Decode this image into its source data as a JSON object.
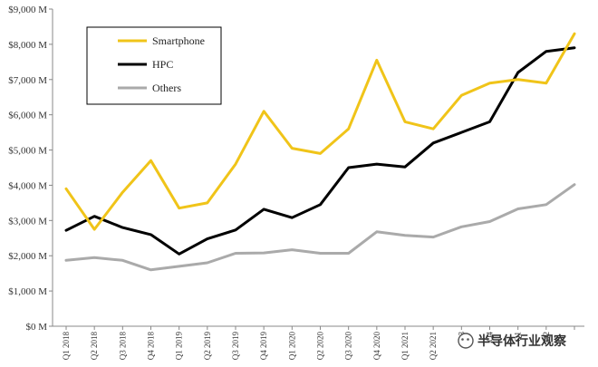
{
  "chart_data": {
    "type": "line",
    "title": "",
    "xlabel": "",
    "ylabel": "",
    "categories": [
      "Q1 2018",
      "Q2 2018",
      "Q3 2018",
      "Q4 2018",
      "Q1 2019",
      "Q2 2019",
      "Q3 2019",
      "Q4 2019",
      "Q1 2020",
      "Q2 2020",
      "Q3 2020",
      "Q4 2020",
      "Q1 2021",
      "Q2 2021",
      "Q3",
      "Q4",
      "Q1",
      "Q2",
      ""
    ],
    "ylim": [
      0,
      9000
    ],
    "yticks": [
      0,
      1000,
      2000,
      3000,
      4000,
      5000,
      6000,
      7000,
      8000,
      9000
    ],
    "ytick_labels": [
      "$0 M",
      "$1,000 M",
      "$2,000 M",
      "$3,000 M",
      "$4,000 M",
      "$5,000 M",
      "$6,000 M",
      "$7,000 M",
      "$8,000 M",
      "$9,000 M"
    ],
    "grid": false,
    "legend_position": "top-left",
    "series": [
      {
        "name": "Smartphone",
        "color": "#F0C419",
        "values": [
          3900,
          2750,
          3800,
          4700,
          3350,
          3500,
          4600,
          6100,
          5050,
          4900,
          5600,
          7550,
          5800,
          5600,
          6550,
          6900,
          7000,
          6900,
          8300
        ]
      },
      {
        "name": "HPC",
        "color": "#000000",
        "values": [
          2720,
          3120,
          2800,
          2600,
          2050,
          2480,
          2730,
          3320,
          3080,
          3450,
          4500,
          4600,
          4520,
          5200,
          5500,
          5800,
          7200,
          7800,
          7900
        ]
      },
      {
        "name": "Others",
        "color": "#AAAAAA",
        "values": [
          1870,
          1950,
          1870,
          1600,
          1700,
          1800,
          2070,
          2080,
          2170,
          2070,
          2070,
          2680,
          2580,
          2530,
          2820,
          2970,
          3330,
          3450,
          4020
        ]
      }
    ]
  },
  "watermark": {
    "text": "半导体行业观察",
    "icon": "wechat-icon"
  }
}
